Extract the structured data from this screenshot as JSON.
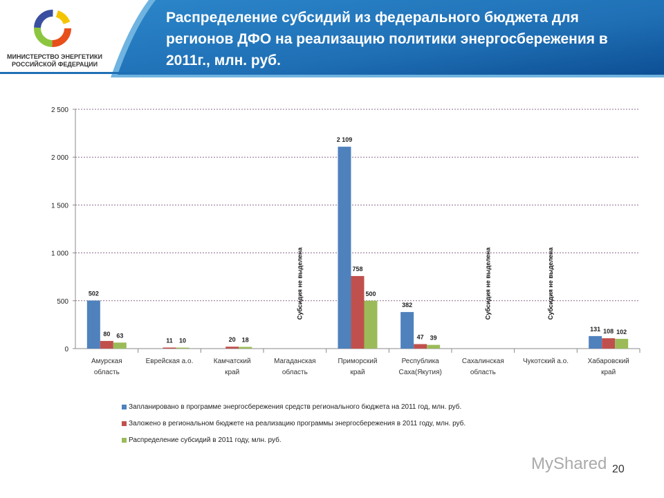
{
  "header": {
    "title": "Распределение субсидий  из федерального бюджета для регионов ДФО на реализацию политики энергосбережения в 2011г., млн. руб.",
    "ministry": "МИНИСТЕРСТВО ЭНЕРГЕТИКИ РОССИЙСКОЙ ФЕДЕРАЦИИ"
  },
  "page_number": "20",
  "watermark": "MyShared",
  "chart_data": {
    "type": "bar",
    "title": "",
    "xlabel": "",
    "ylabel": "",
    "ylim": [
      0,
      2500
    ],
    "grid": true,
    "legend_position": "bottom",
    "yticks": [
      "0",
      "500",
      "1 000",
      "1 500",
      "2 000",
      "2 500"
    ],
    "categories": [
      "Амурская область",
      "Еврейская а.о.",
      "Камчатский край",
      "Магаданская область",
      "Приморский край",
      "Республика Саха(Якутия)",
      "Сахалинская область",
      "Чукотский а.о.",
      "Хабаровский край"
    ],
    "annotations": [
      {
        "category": "Магаданская область",
        "text": "Субсидия не выделена"
      },
      {
        "category": "Сахалинская область",
        "text": "Субсидия не выделена"
      },
      {
        "category": "Чукотский а.о.",
        "text": "Субсидия не выделена"
      }
    ],
    "series": [
      {
        "name": "Запланировано  в программе энергосбережения средств регионального бюджета на 2011 год, млн. руб.",
        "color": "#4f81bd",
        "values": [
          502,
          null,
          null,
          null,
          2109,
          382,
          null,
          null,
          131
        ],
        "labels": [
          "502",
          "",
          "",
          "",
          "2 109",
          "382",
          "",
          "",
          "131"
        ]
      },
      {
        "name": "Заложено в региональном бюджете  на реализацию программы энергосбережения в 2011 году, млн. руб.",
        "color": "#c0504d",
        "values": [
          80,
          11,
          20,
          null,
          758,
          47,
          null,
          null,
          108
        ],
        "labels": [
          "80",
          "11",
          "20",
          "",
          "758",
          "47",
          "",
          "",
          "108"
        ]
      },
      {
        "name": "Распределение субсидий в 2011 году, млн. руб.",
        "color": "#9bbb59",
        "values": [
          63,
          10,
          18,
          null,
          500,
          39,
          null,
          null,
          102
        ],
        "labels": [
          "63",
          "10",
          "18",
          "",
          "500",
          "39",
          "",
          "",
          "102"
        ]
      }
    ]
  }
}
